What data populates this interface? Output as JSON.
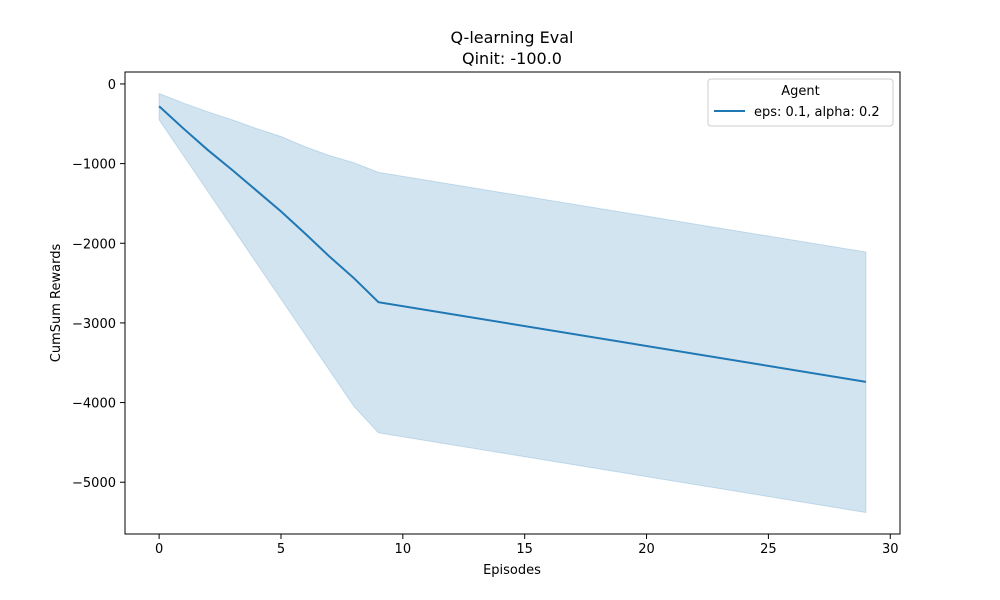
{
  "chart_data": {
    "type": "line",
    "title": "Q-learning Eval",
    "subtitle": "Qinit: -100.0",
    "xlabel": "Episodes",
    "ylabel": "CumSum Rewards",
    "xlim": [
      -1.4,
      30.4
    ],
    "ylim": [
      -5650,
      150
    ],
    "x_ticks": [
      0,
      5,
      10,
      15,
      20,
      25,
      30
    ],
    "x_tick_labels": [
      "0",
      "5",
      "10",
      "15",
      "20",
      "25",
      "30"
    ],
    "y_ticks": [
      0,
      -1000,
      -2000,
      -3000,
      -4000,
      -5000
    ],
    "y_tick_labels": [
      "0",
      "−1000",
      "−2000",
      "−3000",
      "−4000",
      "−5000"
    ],
    "grid": false,
    "legend": {
      "title": "Agent",
      "placement": "top-right"
    },
    "series": [
      {
        "name": "eps: 0.1, alpha: 0.2",
        "color": "#1f77b4",
        "x": [
          0,
          1,
          2,
          3,
          4,
          5,
          6,
          7,
          8,
          9,
          29
        ],
        "y": [
          -280,
          -560,
          -830,
          -1080,
          -1340,
          -1600,
          -1880,
          -2170,
          -2440,
          -2740,
          -3740
        ],
        "band_upper": [
          -120,
          -240,
          -350,
          -450,
          -560,
          -660,
          -790,
          -900,
          -990,
          -1110,
          -2110
        ],
        "band_lower": [
          -450,
          -900,
          -1350,
          -1800,
          -2250,
          -2700,
          -3150,
          -3600,
          -4050,
          -4380,
          -5380
        ]
      }
    ]
  }
}
